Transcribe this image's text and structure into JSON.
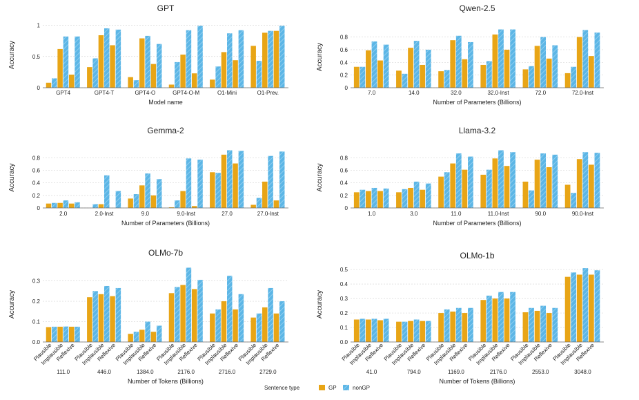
{
  "colors": {
    "gp": "#E8A516",
    "ngp": "#5CB6E6",
    "grid": "#d8d8d8",
    "axis": "#666666"
  },
  "legend": {
    "title": "Sentence type",
    "items": [
      "GP",
      "nonGP"
    ]
  },
  "chart_data": [
    {
      "type": "bar",
      "title": "GPT",
      "xlabel": "Model name",
      "ylabel": "Accuracy",
      "ylim": [
        0,
        1.05
      ],
      "yticks": [
        {
          "v": 0,
          "t": "0"
        },
        {
          "v": 0.5,
          "t": "0.5"
        },
        {
          "v": 1,
          "t": "1"
        }
      ],
      "groups": [
        {
          "label": "GPT4",
          "bars": [
            0.08,
            0.15,
            0.62,
            0.82,
            0.21,
            0.82
          ]
        },
        {
          "label": "GPT4-T",
          "bars": [
            0.33,
            0.47,
            0.84,
            0.95,
            0.68,
            0.93
          ]
        },
        {
          "label": "GPT4-O",
          "bars": [
            0.17,
            0.12,
            0.79,
            0.83,
            0.38,
            0.7
          ]
        },
        {
          "label": "GPT4-O-M",
          "bars": [
            0.05,
            0.41,
            0.53,
            0.92,
            0.23,
            0.99
          ]
        },
        {
          "label": "O1-Mini",
          "bars": [
            0.13,
            0.34,
            0.57,
            0.87,
            0.44,
            0.92
          ]
        },
        {
          "label": "O1-Prev.",
          "bars": [
            0.67,
            0.43,
            0.88,
            0.91,
            0.91,
            0.99
          ]
        }
      ],
      "rotated_sub": []
    },
    {
      "type": "bar",
      "title": "Qwen-2.5",
      "xlabel": "Number of Parameters (Billions)",
      "ylabel": "Accuracy",
      "ylim": [
        0,
        0.97
      ],
      "yticks": [
        {
          "v": 0,
          "t": "0"
        },
        {
          "v": 0.2,
          "t": "0.2"
        },
        {
          "v": 0.4,
          "t": "0.4"
        },
        {
          "v": 0.6,
          "t": "0.6"
        },
        {
          "v": 0.8,
          "t": "0.8"
        }
      ],
      "groups": [
        {
          "label": "7.0",
          "bars": [
            0.33,
            0.33,
            0.59,
            0.73,
            0.43,
            0.68
          ]
        },
        {
          "label": "14.0",
          "bars": [
            0.27,
            0.22,
            0.63,
            0.74,
            0.36,
            0.6
          ]
        },
        {
          "label": "32.0",
          "bars": [
            0.26,
            0.28,
            0.75,
            0.82,
            0.45,
            0.72
          ]
        },
        {
          "label": "32.0-Inst",
          "bars": [
            0.36,
            0.42,
            0.84,
            0.92,
            0.6,
            0.92
          ]
        },
        {
          "label": "72.0",
          "bars": [
            0.29,
            0.34,
            0.66,
            0.8,
            0.46,
            0.67
          ]
        },
        {
          "label": "72.0-Inst",
          "bars": [
            0.23,
            0.33,
            0.8,
            0.91,
            0.5,
            0.87
          ]
        }
      ],
      "rotated_sub": []
    },
    {
      "type": "bar",
      "title": "Gemma-2",
      "xlabel": "Number of Parameters (Billions)",
      "ylabel": "Accuracy",
      "ylim": [
        0,
        0.97
      ],
      "yticks": [
        {
          "v": 0,
          "t": "0"
        },
        {
          "v": 0.2,
          "t": "0.2"
        },
        {
          "v": 0.4,
          "t": "0.4"
        },
        {
          "v": 0.6,
          "t": "0.6"
        },
        {
          "v": 0.8,
          "t": "0.8"
        }
      ],
      "groups": [
        {
          "label": "2.0",
          "bars": [
            0.07,
            0.08,
            0.08,
            0.12,
            0.07,
            0.09
          ]
        },
        {
          "label": "2.0-Inst",
          "bars": [
            0.0,
            0.06,
            0.06,
            0.52,
            0.0,
            0.27
          ]
        },
        {
          "label": "9.0",
          "bars": [
            0.15,
            0.22,
            0.36,
            0.55,
            0.2,
            0.46
          ]
        },
        {
          "label": "9.0-Inst",
          "bars": [
            0.01,
            0.12,
            0.27,
            0.79,
            0.03,
            0.77
          ]
        },
        {
          "label": "27.0",
          "bars": [
            0.57,
            0.56,
            0.85,
            0.92,
            0.71,
            0.91
          ]
        },
        {
          "label": "27.0-Inst",
          "bars": [
            0.05,
            0.16,
            0.42,
            0.83,
            0.12,
            0.9
          ]
        }
      ],
      "rotated_sub": []
    },
    {
      "type": "bar",
      "title": "Llama-3.2",
      "xlabel": "Number of Parameters (Billions)",
      "ylabel": "Accuracy",
      "ylim": [
        0,
        0.97
      ],
      "yticks": [
        {
          "v": 0,
          "t": "0"
        },
        {
          "v": 0.2,
          "t": "0.2"
        },
        {
          "v": 0.4,
          "t": "0.4"
        },
        {
          "v": 0.6,
          "t": "0.6"
        },
        {
          "v": 0.8,
          "t": "0.8"
        }
      ],
      "groups": [
        {
          "label": "1.0",
          "bars": [
            0.25,
            0.29,
            0.27,
            0.32,
            0.27,
            0.31
          ]
        },
        {
          "label": "3.0",
          "bars": [
            0.25,
            0.3,
            0.32,
            0.42,
            0.29,
            0.39
          ]
        },
        {
          "label": "11.0",
          "bars": [
            0.5,
            0.57,
            0.71,
            0.87,
            0.61,
            0.82
          ]
        },
        {
          "label": "11.0-Inst",
          "bars": [
            0.53,
            0.61,
            0.79,
            0.92,
            0.67,
            0.89
          ]
        },
        {
          "label": "90.0",
          "bars": [
            0.42,
            0.28,
            0.77,
            0.87,
            0.65,
            0.85
          ]
        },
        {
          "label": "90.0-Inst",
          "bars": [
            0.37,
            0.24,
            0.78,
            0.89,
            0.69,
            0.88
          ]
        }
      ],
      "rotated_sub": []
    },
    {
      "type": "bar",
      "title": "OLMo-7b",
      "xlabel": "Number of Tokens (Billions)",
      "ylabel": "Accuracy",
      "ylim": [
        0,
        0.37
      ],
      "yticks": [
        {
          "v": 0,
          "t": "0.0"
        },
        {
          "v": 0.1,
          "t": "0.1"
        },
        {
          "v": 0.2,
          "t": "0.2"
        },
        {
          "v": 0.3,
          "t": "0.3"
        }
      ],
      "groups": [
        {
          "label": "111.0",
          "bars": [
            0.073,
            0.075,
            0.075,
            0.076,
            0.075,
            0.075
          ]
        },
        {
          "label": "446.0",
          "bars": [
            0.22,
            0.25,
            0.235,
            0.275,
            0.225,
            0.265
          ]
        },
        {
          "label": "1384.0",
          "bars": [
            0.04,
            0.05,
            0.06,
            0.1,
            0.05,
            0.08
          ]
        },
        {
          "label": "2176.0",
          "bars": [
            0.24,
            0.27,
            0.28,
            0.365,
            0.26,
            0.305
          ]
        },
        {
          "label": "2716.0",
          "bars": [
            0.14,
            0.16,
            0.2,
            0.325,
            0.16,
            0.235
          ]
        },
        {
          "label": "2729.0",
          "bars": [
            0.12,
            0.14,
            0.17,
            0.265,
            0.14,
            0.2
          ]
        }
      ],
      "rotated_sub": [
        "Plausible",
        "Implausible",
        "Reflexive"
      ]
    },
    {
      "type": "bar",
      "title": "OLMo-1b",
      "xlabel": "Number of Tokens (Billions)",
      "ylabel": "Accuracy",
      "ylim": [
        0,
        0.52
      ],
      "yticks": [
        {
          "v": 0,
          "t": "0.0"
        },
        {
          "v": 0.1,
          "t": "0.1"
        },
        {
          "v": 0.2,
          "t": "0.2"
        },
        {
          "v": 0.3,
          "t": "0.3"
        },
        {
          "v": 0.4,
          "t": "0.4"
        },
        {
          "v": 0.5,
          "t": "0.5"
        }
      ],
      "groups": [
        {
          "label": "41.0",
          "bars": [
            0.155,
            0.16,
            0.155,
            0.16,
            0.15,
            0.16
          ]
        },
        {
          "label": "794.0",
          "bars": [
            0.14,
            0.14,
            0.145,
            0.155,
            0.145,
            0.145
          ]
        },
        {
          "label": "1169.0",
          "bars": [
            0.2,
            0.225,
            0.21,
            0.235,
            0.2,
            0.235
          ]
        },
        {
          "label": "2176.0",
          "bars": [
            0.29,
            0.32,
            0.3,
            0.345,
            0.3,
            0.345
          ]
        },
        {
          "label": "2553.0",
          "bars": [
            0.205,
            0.235,
            0.215,
            0.25,
            0.2,
            0.235
          ]
        },
        {
          "label": "3048.0",
          "bars": [
            0.45,
            0.48,
            0.465,
            0.51,
            0.465,
            0.495
          ]
        }
      ],
      "rotated_sub": [
        "Plausible",
        "Implausible",
        "Reflexive"
      ]
    }
  ]
}
